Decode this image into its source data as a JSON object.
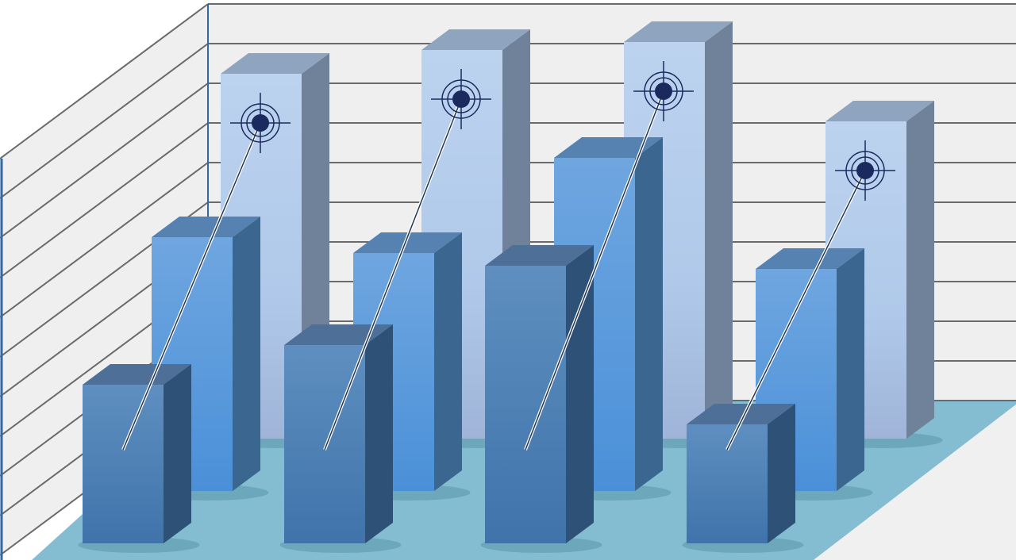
{
  "chart_data": {
    "type": "bar",
    "style": "3d-illustration",
    "categories": [
      "",
      "",
      "",
      ""
    ],
    "series": [
      {
        "values": [
          9.2,
          9.8,
          10.0,
          8.0
        ],
        "color": "#b4cdea",
        "row": "back"
      },
      {
        "values": [
          6.4,
          6.0,
          8.4,
          5.6
        ],
        "color": "#5b9fe0",
        "row": "middle"
      },
      {
        "values": [
          4.0,
          5.0,
          7.0,
          3.0
        ],
        "color": "#4a80b8",
        "row": "front"
      }
    ],
    "ylim": [
      0,
      11
    ],
    "grid": true,
    "legend": "none",
    "target_markers": true,
    "colors": {
      "wall": "#efefef",
      "grid": "#6a6a6a",
      "floor": "#84bdd2",
      "axis": "#2f6aa6",
      "target": "#1a2a5e"
    }
  }
}
